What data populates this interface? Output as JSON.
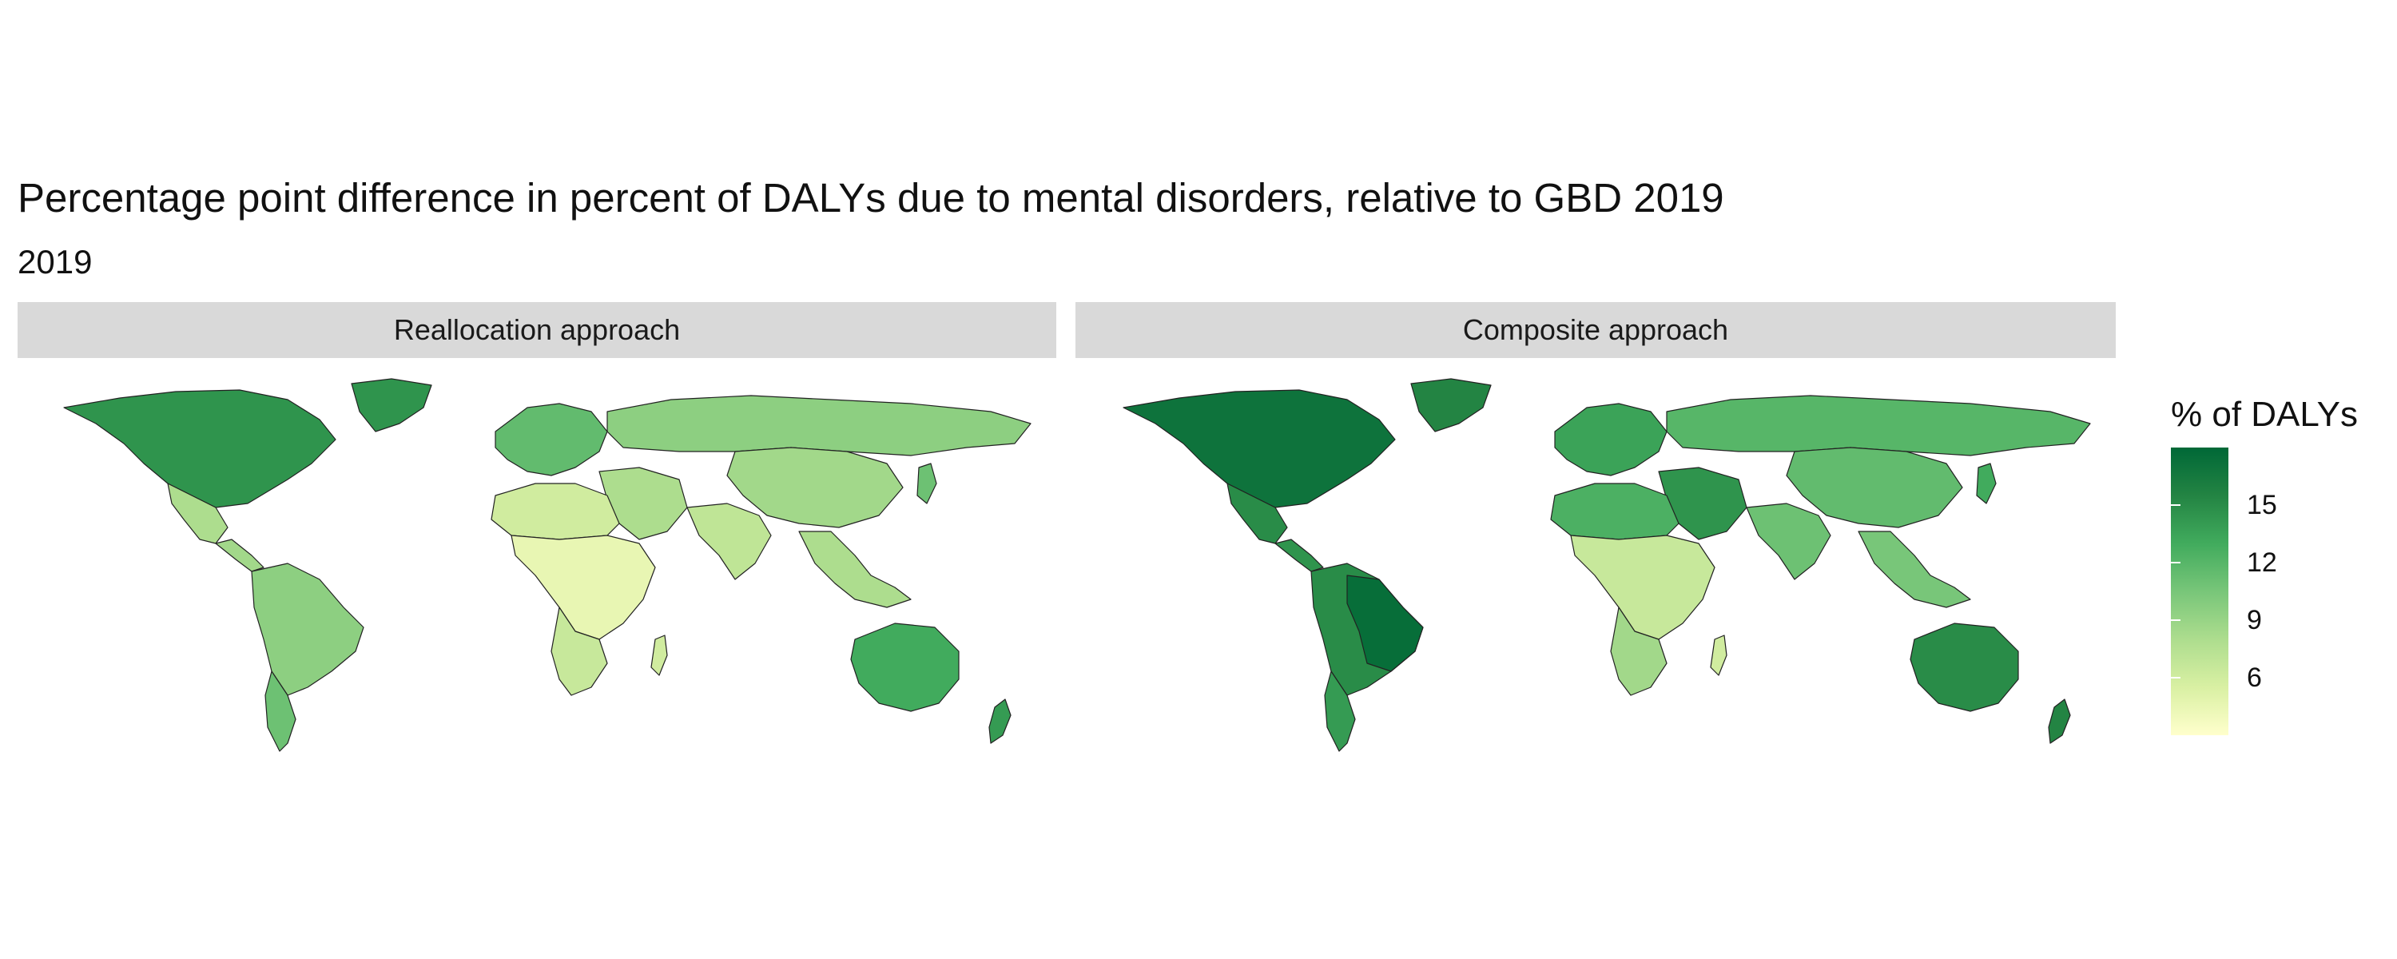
{
  "title": "Percentage point difference in percent of DALYs due to mental disorders, relative to GBD 2019",
  "subtitle": "2019",
  "panels": [
    {
      "label": "Reallocation approach"
    },
    {
      "label": "Composite approach"
    }
  ],
  "legend": {
    "title": "% of DALYs",
    "min": 3,
    "max": 18,
    "ticks": [
      {
        "value": 15,
        "label": "15"
      },
      {
        "value": 12,
        "label": "12"
      },
      {
        "value": 9,
        "label": "9"
      },
      {
        "value": 6,
        "label": "6"
      }
    ],
    "colors": [
      "#ffffcc",
      "#d9f0a3",
      "#addd8e",
      "#78c679",
      "#41ab5d",
      "#238443",
      "#006837"
    ]
  },
  "regions": {
    "reallocation": {
      "north_america": 14.5,
      "greenland": 14.5,
      "mexico": 8.0,
      "central_america": 8.5,
      "south_america": 9.5,
      "southern_cone": 11.0,
      "europe": 11.5,
      "russia": 9.5,
      "middle_east": 8.0,
      "north_africa": 6.0,
      "sub_saharan_africa": 4.5,
      "south_africa": 6.5,
      "south_asia": 7.0,
      "china": 8.5,
      "southeast_asia": 8.0,
      "australia": 13.0,
      "new_zealand": 14.0,
      "japan": 11.0,
      "madagascar": 6.0
    },
    "composite": {
      "north_america": 17.0,
      "greenland": 15.5,
      "mexico": 15.0,
      "central_america": 14.5,
      "south_america": 15.0,
      "brazil": 17.5,
      "southern_cone": 14.0,
      "europe": 13.5,
      "russia": 12.0,
      "middle_east": 14.5,
      "north_africa": 12.5,
      "sub_saharan_africa": 6.5,
      "south_africa": 8.5,
      "south_asia": 11.0,
      "china": 11.5,
      "southeast_asia": 10.5,
      "australia": 15.0,
      "new_zealand": 15.5,
      "japan": 13.0,
      "madagascar": 6.0
    }
  }
}
